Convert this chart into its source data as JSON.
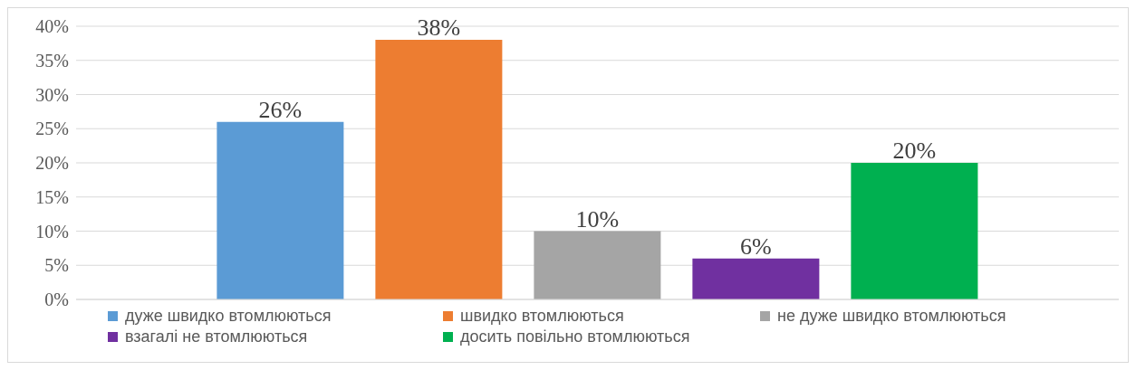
{
  "chart_data": {
    "type": "bar",
    "categories": [
      null
    ],
    "series": [
      {
        "name": "дуже швидко втомлюються",
        "color": "#5b9bd5",
        "values": [
          26
        ],
        "value_labels": [
          "26%"
        ]
      },
      {
        "name": "швидко втомлюються",
        "color": "#ed7d31",
        "values": [
          38
        ],
        "value_labels": [
          "38%"
        ]
      },
      {
        "name": "не дуже швидко втомлюються",
        "color": "#a5a5a5",
        "values": [
          10
        ],
        "value_labels": [
          "10%"
        ]
      },
      {
        "name": "взагалі не втомлюються",
        "color": "#7030a0",
        "values": [
          6
        ],
        "value_labels": [
          "6%"
        ]
      },
      {
        "name": "досить повільно втомлюються",
        "color": "#00b050",
        "values": [
          20
        ],
        "value_labels": [
          "20%"
        ]
      }
    ],
    "ylim": [
      0,
      40
    ],
    "yticks": [
      {
        "value": 0,
        "label": "0%"
      },
      {
        "value": 5,
        "label": "5%"
      },
      {
        "value": 10,
        "label": "10%"
      },
      {
        "value": 15,
        "label": "15%"
      },
      {
        "value": 20,
        "label": "20%"
      },
      {
        "value": 25,
        "label": "25%"
      },
      {
        "value": 30,
        "label": "30%"
      },
      {
        "value": 35,
        "label": "35%"
      },
      {
        "value": 40,
        "label": "40%"
      }
    ],
    "grid": "y",
    "legend": "bottom"
  }
}
